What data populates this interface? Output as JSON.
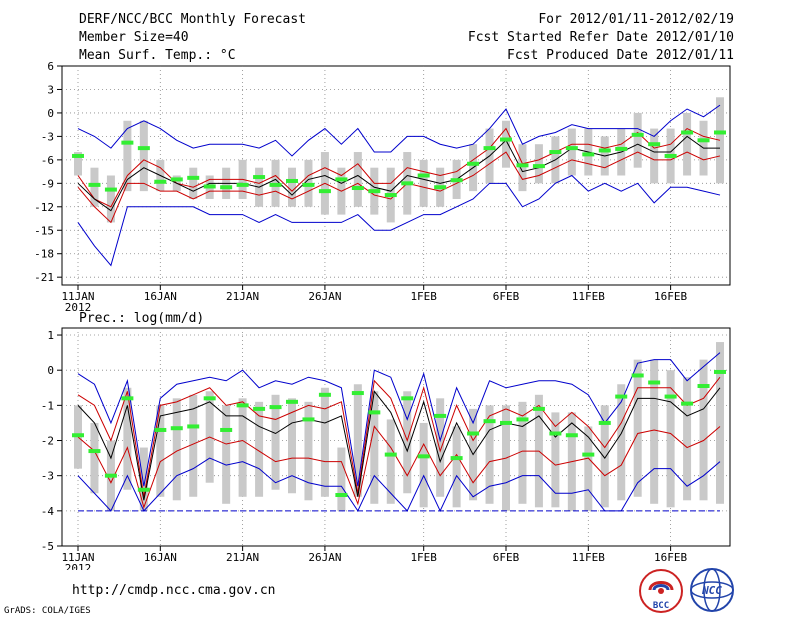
{
  "header": {
    "title": "DERF/NCC/BCC Monthly Forecast",
    "member_size": "Member Size=40",
    "variable": "Mean Surf. Temp.: °C",
    "period": "For 2012/01/11-2012/02/19",
    "started": "Fcst Started Refer Date 2012/01/10",
    "produced": "Fcst Produced Date 2012/01/11"
  },
  "footer": {
    "url": "http://cmdp.ncc.cma.gov.cn",
    "grads": "GrADS: COLA/IGES",
    "logo_bcc": "BCC",
    "logo_ncc": "NCC"
  },
  "colors": {
    "max_min": "#0000cc",
    "pct": "#cc0000",
    "median": "#000000",
    "mean_mark": "#33ee33",
    "bar": "#c9c9c9",
    "floor": "#0000cc"
  },
  "chart_data": [
    {
      "type": "line",
      "title": "Mean Surf. Temp.: °C",
      "x_ticks": [
        "11JAN",
        "16JAN",
        "21JAN",
        "26JAN",
        "1FEB",
        "6FEB",
        "11FEB",
        "16FEB"
      ],
      "x_tick_days": [
        1,
        6,
        11,
        16,
        22,
        27,
        32,
        37
      ],
      "x_year": "2012",
      "ylim": [
        -22,
        6
      ],
      "y_ticks": [
        6,
        3,
        0,
        -3,
        -6,
        -9,
        -12,
        -15,
        -18,
        -21
      ],
      "days": [
        1,
        2,
        3,
        4,
        5,
        6,
        7,
        8,
        9,
        10,
        11,
        12,
        13,
        14,
        15,
        16,
        17,
        18,
        19,
        20,
        21,
        22,
        23,
        24,
        25,
        26,
        27,
        28,
        29,
        30,
        31,
        32,
        33,
        34,
        35,
        36,
        37,
        38,
        39,
        40
      ],
      "series": [
        {
          "name": "max",
          "values": [
            -2,
            -3,
            -4.5,
            -2,
            -1,
            -2,
            -3.5,
            -4.5,
            -4,
            -4,
            -4,
            -4.5,
            -3.5,
            -5.5,
            -3.5,
            -2,
            -4,
            -2,
            -5,
            -5,
            -3,
            -3,
            -4,
            -4.5,
            -4,
            -2,
            0.5,
            -4,
            -3,
            -2.5,
            -1.5,
            -2,
            -2,
            -2,
            -2,
            -3,
            -1,
            0.5,
            -0.5,
            1
          ]
        },
        {
          "name": "upper",
          "values": [
            -8,
            -11,
            -12,
            -8,
            -6,
            -7,
            -9,
            -9.5,
            -8.5,
            -8.5,
            -8.5,
            -9,
            -8,
            -10,
            -8,
            -7,
            -8,
            -6.5,
            -9,
            -9,
            -7,
            -7.5,
            -8,
            -7.5,
            -6,
            -4.5,
            -2,
            -6.5,
            -6,
            -5,
            -4,
            -4,
            -4.5,
            -4,
            -2.5,
            -4.5,
            -4,
            -2,
            -3,
            -3.5
          ]
        },
        {
          "name": "median",
          "values": [
            -9,
            -11,
            -12.5,
            -8.5,
            -7,
            -8,
            -9,
            -10,
            -9,
            -9,
            -9,
            -9.5,
            -8.5,
            -10.5,
            -8.5,
            -8,
            -9,
            -8,
            -9.5,
            -10,
            -8,
            -8.5,
            -9,
            -8.5,
            -7,
            -5.5,
            -3.5,
            -7.5,
            -7,
            -6,
            -4.5,
            -5,
            -5.5,
            -5,
            -4,
            -5,
            -5,
            -3,
            -4.5,
            -4.5
          ]
        },
        {
          "name": "lower",
          "values": [
            -9.5,
            -12,
            -14,
            -9,
            -9,
            -10,
            -10,
            -11,
            -10,
            -10,
            -10,
            -10.5,
            -10,
            -11,
            -10,
            -9,
            -10,
            -9,
            -10.5,
            -11,
            -9,
            -9.5,
            -10,
            -9,
            -8,
            -6.5,
            -5,
            -8.5,
            -8,
            -7,
            -6,
            -6.5,
            -7,
            -6,
            -5,
            -6,
            -6,
            -5,
            -6,
            -5.5
          ]
        },
        {
          "name": "min",
          "values": [
            -14,
            -17,
            -19.5,
            -12,
            -12,
            -12,
            -12,
            -12,
            -13,
            -13,
            -13,
            -14,
            -13,
            -14,
            -14,
            -14,
            -14,
            -13,
            -15,
            -15,
            -14,
            -13,
            -13,
            -12,
            -11,
            -9,
            -9,
            -12,
            -11,
            -9,
            -8,
            -10,
            -9,
            -10,
            -9,
            -11.5,
            -9.5,
            -9.5,
            -10,
            -10.5
          ]
        },
        {
          "name": "ensemble-mean",
          "values": [
            -5.5,
            -9.2,
            -9.8,
            -3.8,
            -4.5,
            -8.8,
            -8.5,
            -8.3,
            -9.4,
            -9.5,
            -9.2,
            -8.2,
            -9.2,
            -8.7,
            -9.2,
            -10,
            -8.5,
            -9.6,
            -10,
            -10.5,
            -9,
            -8,
            -9.5,
            -8.6,
            -6.5,
            -4.5,
            -3.4,
            -6.7,
            -6.8,
            -5,
            -4.5,
            -5.3,
            -4.8,
            -4.6,
            -2.8,
            -4,
            -5.5,
            -2.5,
            -3.5,
            -2.5
          ]
        },
        {
          "name": "spread-high",
          "values": [
            -5,
            -7,
            -8,
            -1,
            -1,
            -6,
            -8,
            -7,
            -8,
            -7,
            -6,
            -7,
            -6,
            -7,
            -6,
            -5,
            -7,
            -5,
            -7,
            -7,
            -5,
            -6,
            -7,
            -6,
            -4,
            -2,
            -1,
            -4,
            -4,
            -3,
            -2,
            -2,
            -3,
            -2,
            0,
            -2,
            -2,
            0,
            -1,
            2
          ]
        },
        {
          "name": "spread-low",
          "values": [
            -8,
            -12,
            -14,
            -10,
            -10,
            -10,
            -10,
            -11,
            -11,
            -11,
            -11,
            -12,
            -12,
            -12,
            -12,
            -13,
            -13,
            -12,
            -13,
            -14,
            -13,
            -12,
            -12,
            -11,
            -10,
            -9,
            -7,
            -10,
            -9,
            -9,
            -8,
            -8,
            -8,
            -8,
            -7,
            -9,
            -9,
            -8,
            -8,
            -9
          ]
        }
      ]
    },
    {
      "type": "line",
      "title": "Prec.: log(mm/d)",
      "x_ticks": [
        "11JAN",
        "16JAN",
        "21JAN",
        "26JAN",
        "1FEB",
        "6FEB",
        "11FEB",
        "16FEB"
      ],
      "x_tick_days": [
        1,
        6,
        11,
        16,
        22,
        27,
        32,
        37
      ],
      "x_year": "2012",
      "ylim": [
        -5,
        1.2
      ],
      "y_ticks": [
        1,
        0,
        -1,
        -2,
        -3,
        -4,
        -5
      ],
      "days": [
        1,
        2,
        3,
        4,
        5,
        6,
        7,
        8,
        9,
        10,
        11,
        12,
        13,
        14,
        15,
        16,
        17,
        18,
        19,
        20,
        21,
        22,
        23,
        24,
        25,
        26,
        27,
        28,
        29,
        30,
        31,
        32,
        33,
        34,
        35,
        36,
        37,
        38,
        39,
        40
      ],
      "series": [
        {
          "name": "max",
          "values": [
            -0.1,
            -0.4,
            -1.5,
            -0.3,
            -3.3,
            -0.8,
            -0.4,
            -0.3,
            -0.2,
            -0.3,
            0,
            -0.5,
            -0.3,
            -0.4,
            -0.2,
            -0.3,
            -0.5,
            -3.3,
            0,
            -0.2,
            -1.4,
            -0.1,
            -2,
            -0.5,
            -1.5,
            -0.3,
            -0.5,
            -0.4,
            -0.3,
            -0.3,
            -0.4,
            -0.7,
            -1.5,
            -0.9,
            0.2,
            0.3,
            0.3,
            -0.3,
            0.1,
            0.5
          ]
        },
        {
          "name": "upper",
          "values": [
            -0.7,
            -1,
            -2,
            -0.6,
            -3.6,
            -1,
            -0.9,
            -0.7,
            -0.5,
            -1,
            -0.9,
            -1.3,
            -1.4,
            -1.2,
            -1,
            -1.1,
            -0.9,
            -3.5,
            -0.3,
            -0.8,
            -2,
            -0.5,
            -2.3,
            -1,
            -2,
            -1.3,
            -1.1,
            -1.3,
            -1,
            -1.6,
            -1.2,
            -1.6,
            -2.2,
            -1.5,
            -0.5,
            -0.5,
            -0.5,
            -1,
            -0.8,
            -0.2
          ]
        },
        {
          "name": "median",
          "values": [
            -1,
            -1.5,
            -2.5,
            -1,
            -3.7,
            -1.3,
            -1.2,
            -1.1,
            -0.9,
            -1.3,
            -1.3,
            -1.6,
            -1.8,
            -1.5,
            -1.4,
            -1.5,
            -1.3,
            -3.6,
            -0.6,
            -1.2,
            -2.3,
            -0.9,
            -2.6,
            -1.5,
            -2.4,
            -1.7,
            -1.5,
            -1.6,
            -1.3,
            -1.9,
            -1.5,
            -1.9,
            -2.5,
            -1.8,
            -0.8,
            -0.8,
            -0.9,
            -1.3,
            -1.1,
            -0.5
          ]
        },
        {
          "name": "lower",
          "values": [
            -1.9,
            -2.3,
            -3.2,
            -2.2,
            -3.9,
            -2.6,
            -2.3,
            -2.1,
            -1.9,
            -2.1,
            -2,
            -2.3,
            -2.6,
            -2.5,
            -2.5,
            -2.6,
            -2.6,
            -3.8,
            -1.6,
            -2.2,
            -3,
            -2.1,
            -3,
            -2.4,
            -3.2,
            -2.6,
            -2.5,
            -2.3,
            -2.3,
            -2.7,
            -2.6,
            -2.5,
            -3,
            -2.7,
            -1.8,
            -1.7,
            -1.8,
            -2.2,
            -2,
            -1.6
          ]
        },
        {
          "name": "min",
          "values": [
            -3,
            -3.5,
            -4,
            -3,
            -4,
            -3.5,
            -3,
            -2.8,
            -2.5,
            -2.7,
            -2.6,
            -2.8,
            -3.2,
            -3,
            -3.2,
            -3.3,
            -3.3,
            -4,
            -3,
            -3.5,
            -4,
            -3,
            -4,
            -3,
            -3.6,
            -3.3,
            -3.2,
            -3,
            -3,
            -3.5,
            -3.5,
            -3.4,
            -4,
            -4,
            -3.2,
            -2.8,
            -2.8,
            -3.3,
            -3,
            -2.6
          ]
        },
        {
          "name": "ensemble-mean",
          "values": [
            -1.85,
            -2.3,
            -3,
            -0.8,
            -3.4,
            -1.7,
            -1.65,
            -1.6,
            -0.8,
            -1.7,
            -1,
            -1.1,
            -1.05,
            -0.9,
            -1.4,
            -0.7,
            -3.55,
            -0.65,
            -1.2,
            -2.4,
            -0.8,
            -2.45,
            -1.3,
            -2.5,
            -1.8,
            -1.45,
            -1.5,
            -1.4,
            -1.1,
            -1.8,
            -1.85,
            -2.4,
            -1.5,
            -0.75,
            -0.15,
            -0.35,
            -0.75,
            -0.95,
            -0.45,
            -0.05
          ]
        },
        {
          "name": "spread-high",
          "values": [
            -1,
            -1.5,
            -2,
            -0.5,
            -2.2,
            -1,
            -0.8,
            -0.7,
            -0.6,
            -1,
            -0.8,
            -0.9,
            -0.7,
            -0.8,
            -0.9,
            -0.5,
            -2.2,
            -0.4,
            -0.6,
            -1.4,
            -0.6,
            -1.5,
            -0.8,
            -1.6,
            -1.1,
            -1,
            -1,
            -0.9,
            -0.7,
            -1.2,
            -1.2,
            -1.6,
            -1,
            -0.4,
            0.3,
            0.3,
            0,
            -0.2,
            0.3,
            0.8
          ]
        },
        {
          "name": "spread-low",
          "values": [
            -2.8,
            -3.5,
            -4,
            -3.4,
            -4,
            -3.6,
            -3.7,
            -3.6,
            -3.2,
            -3.8,
            -3.6,
            -3.6,
            -3.4,
            -3.5,
            -3.7,
            -3.6,
            -4,
            -3.6,
            -3.8,
            -3.8,
            -3.5,
            -3.9,
            -3.6,
            -3.9,
            -3.7,
            -3.8,
            -4,
            -3.8,
            -3.9,
            -3.9,
            -4,
            -4,
            -3.9,
            -3.7,
            -3.6,
            -3.8,
            -3.9,
            -3.7,
            -3.7,
            -3.8
          ]
        },
        {
          "name": "floor",
          "values": [
            -4,
            -4,
            -4,
            -4,
            -4,
            -4,
            -4,
            -4,
            -4,
            -4,
            -4,
            -4,
            -4,
            -4,
            -4,
            -4,
            -4,
            -4,
            -4,
            -4,
            -4,
            -4,
            -4,
            -4,
            -4,
            -4,
            -4,
            -4,
            -4,
            -4,
            -4,
            -4,
            -4,
            -4,
            -4,
            -4,
            -4,
            -4,
            -4,
            -4
          ]
        }
      ]
    }
  ]
}
